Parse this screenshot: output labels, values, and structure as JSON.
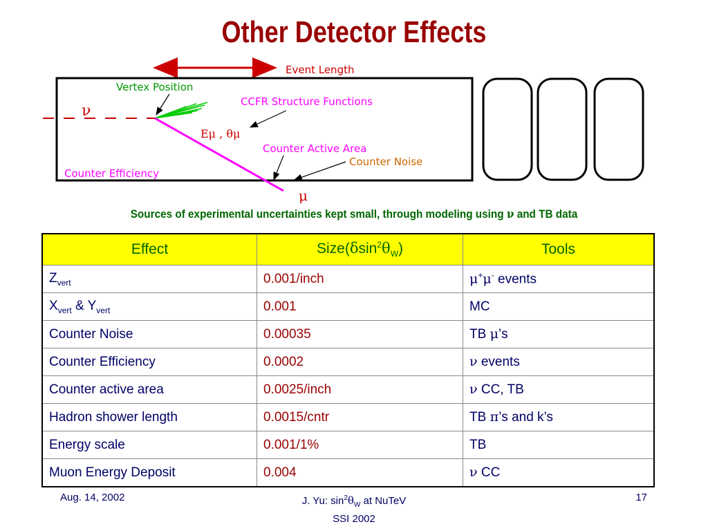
{
  "slide": {
    "title": "Other Detector Effects",
    "subtitle_parts": [
      "Sources of experimental uncertainties kept small, through modeling using ",
      "ν",
      " and TB data"
    ]
  },
  "diagram": {
    "event_length": "Event Length",
    "vertex_position": "Vertex Position",
    "ccfr_structure_functions": "CCFR Structure Functions",
    "e_mu_theta_mu": "Eμ , θμ",
    "counter_active_area": "Counter Active Area",
    "counter_noise": "Counter Noise",
    "counter_efficiency": "Counter Efficiency",
    "nu": "ν",
    "mu": "μ",
    "colors": {
      "box": "#000000",
      "muon_track": "#ff00ff",
      "hadron_shower": "#00cc00",
      "labels_green": "#009900",
      "labels_magenta": "#ff00ff",
      "labels_red": "#cc0000",
      "counter_noise": "#cc6600"
    }
  },
  "table": {
    "headers": {
      "effect": "Effect",
      "size_prefix": "Size(",
      "size_delta": "δ",
      "size_sin": "sin",
      "size_sup": "2",
      "size_theta": "θ",
      "size_sub": "W",
      "size_suffix": ")",
      "tools": "Tools"
    },
    "rows": [
      {
        "effect_main": "Z",
        "effect_sub": "vert",
        "size": "0.001/inch",
        "tools_parts": [
          "μ",
          "+",
          "μ",
          "-",
          " events"
        ]
      },
      {
        "effect_main": "X",
        "effect_sub": "vert",
        "effect_mid": " & Y",
        "effect_sub2": "vert",
        "size": "0.001",
        "tools": "MC"
      },
      {
        "effect": "Counter Noise",
        "size": "0.00035",
        "tools_parts": [
          "TB ",
          "μ",
          "’s"
        ]
      },
      {
        "effect": "Counter Efficiency",
        "size": "0.0002",
        "tools_parts": [
          "ν",
          " events"
        ]
      },
      {
        "effect": "Counter active area",
        "size": "0.0025/inch",
        "tools_parts": [
          "ν",
          " CC, TB"
        ]
      },
      {
        "effect": "Hadron shower length",
        "size": "0.0015/cntr",
        "tools_parts": [
          "TB ",
          "π",
          "’s and k’s"
        ]
      },
      {
        "effect": "Energy scale",
        "size": "0.001/1%",
        "tools": "TB"
      },
      {
        "effect": "Muon Energy Deposit",
        "size": "0.004",
        "tools_parts": [
          "ν",
          " CC"
        ]
      }
    ]
  },
  "footer": {
    "date": "Aug. 14, 2002",
    "center_line1_parts": [
      "J. Yu: sin",
      "2",
      "θ",
      "W",
      " at NuTeV"
    ],
    "center_line2": "SSI 2002",
    "page": "17"
  }
}
